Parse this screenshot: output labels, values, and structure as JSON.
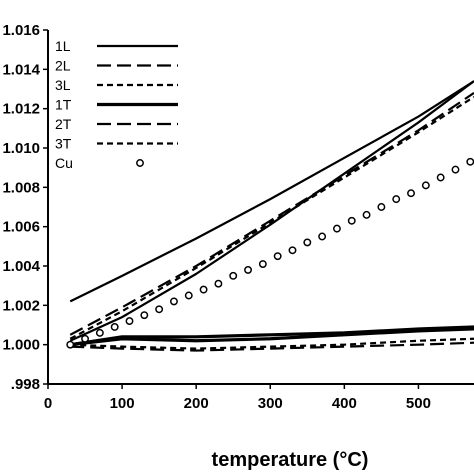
{
  "chart_data": {
    "type": "line",
    "title": "",
    "xlabel": "temperature (°C)",
    "ylabel": "",
    "xlim": [
      0,
      575
    ],
    "ylim": [
      0.998,
      1.016
    ],
    "x_ticks": [
      "0",
      "100",
      "200",
      "300",
      "400",
      "500"
    ],
    "y_ticks": [
      ".998",
      "1.000",
      "1.002",
      "1.004",
      "1.006",
      "1.008",
      "1.010",
      "1.012",
      "1.014",
      "1.016"
    ],
    "y_tick_values": [
      0.998,
      1.0,
      1.002,
      1.004,
      1.006,
      1.008,
      1.01,
      1.012,
      1.014,
      1.016
    ],
    "x_tick_values": [
      0,
      100,
      200,
      300,
      400,
      500
    ],
    "grid": false,
    "legend_position": "top-left",
    "series": [
      {
        "name": "1L",
        "style": "solid",
        "x": [
          30,
          100,
          200,
          300,
          400,
          500,
          575
        ],
        "y": [
          1.0022,
          1.0035,
          1.0054,
          1.0074,
          1.0095,
          1.0116,
          1.0134
        ]
      },
      {
        "name": "1L",
        "style": "solid",
        "x": [
          30,
          100,
          200,
          300,
          400,
          500,
          575
        ],
        "y": [
          1.0002,
          1.0014,
          1.0036,
          1.0061,
          1.0087,
          1.0113,
          1.0134
        ]
      },
      {
        "name": "2L",
        "style": "longdash",
        "x": [
          30,
          100,
          200,
          300,
          400,
          500,
          575
        ],
        "y": [
          1.0005,
          1.0019,
          1.004,
          1.0063,
          1.0086,
          1.0109,
          1.0128
        ]
      },
      {
        "name": "3L",
        "style": "shortdash",
        "x": [
          30,
          100,
          200,
          300,
          400,
          500,
          575
        ],
        "y": [
          1.0003,
          1.0017,
          1.0039,
          1.0062,
          1.0085,
          1.0108,
          1.0126
        ]
      },
      {
        "name": "1T",
        "style": "thick",
        "x": [
          30,
          100,
          200,
          300,
          400,
          500,
          575
        ],
        "y": [
          1.0,
          1.0003,
          1.0002,
          1.0003,
          1.0005,
          1.0007,
          1.0008
        ]
      },
      {
        "name": "1T",
        "style": "thick",
        "x": [
          30,
          100,
          200,
          300,
          400,
          500,
          575
        ],
        "y": [
          1.0,
          1.0004,
          1.0004,
          1.0005,
          1.0006,
          1.0008,
          1.0009
        ]
      },
      {
        "name": "2T",
        "style": "longdash",
        "x": [
          30,
          100,
          200,
          300,
          400,
          500,
          575
        ],
        "y": [
          0.9999,
          0.9998,
          0.9997,
          0.9998,
          0.9999,
          1.0,
          1.0001
        ]
      },
      {
        "name": "3T",
        "style": "shortdash",
        "x": [
          30,
          100,
          200,
          300,
          400,
          500,
          575
        ],
        "y": [
          1.0,
          0.9999,
          0.9998,
          0.9999,
          1.0,
          1.0002,
          1.0003
        ]
      },
      {
        "name": "Cu",
        "style": "circles",
        "x": [
          30,
          50,
          70,
          90,
          110,
          130,
          150,
          170,
          190,
          210,
          230,
          250,
          270,
          290,
          310,
          330,
          350,
          370,
          390,
          410,
          430,
          450,
          470,
          490,
          510,
          530,
          550,
          570
        ],
        "y": [
          1.0,
          1.0003,
          1.0006,
          1.0009,
          1.0012,
          1.0015,
          1.0018,
          1.0022,
          1.0025,
          1.0028,
          1.0031,
          1.0035,
          1.0038,
          1.0041,
          1.0045,
          1.0048,
          1.0052,
          1.0055,
          1.0059,
          1.0063,
          1.0066,
          1.007,
          1.0074,
          1.0077,
          1.0081,
          1.0085,
          1.0089,
          1.0093
        ]
      }
    ],
    "legend": [
      {
        "label": "1L",
        "style": "solid"
      },
      {
        "label": "2L",
        "style": "longdash"
      },
      {
        "label": "3L",
        "style": "shortdash"
      },
      {
        "label": "1T",
        "style": "thick"
      },
      {
        "label": "2T",
        "style": "longdash"
      },
      {
        "label": "3T",
        "style": "shortdash"
      },
      {
        "label": "Cu",
        "style": "circles"
      }
    ]
  }
}
